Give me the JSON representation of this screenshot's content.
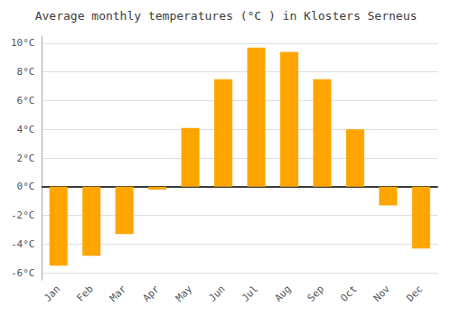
{
  "chart_data": {
    "type": "bar",
    "title": "Average monthly temperatures (°C ) in Klosters Serneus",
    "categories": [
      "Jan",
      "Feb",
      "Mar",
      "Apr",
      "May",
      "Jun",
      "Jul",
      "Aug",
      "Sep",
      "Oct",
      "Nov",
      "Dec"
    ],
    "values": [
      -5.5,
      -4.8,
      -3.3,
      -0.2,
      4.1,
      7.5,
      9.7,
      9.4,
      7.5,
      4.0,
      -1.3,
      -4.3
    ],
    "color": "#FFA500",
    "ylim": [
      -6.5,
      10.5
    ],
    "yticks": [
      {
        "value": -6,
        "label": "-6°C"
      },
      {
        "value": -4,
        "label": "-4°C"
      },
      {
        "value": -2,
        "label": "-2°C"
      },
      {
        "value": 0,
        "label": "0°C"
      },
      {
        "value": 2,
        "label": "2°C"
      },
      {
        "value": 4,
        "label": "4°C"
      },
      {
        "value": 6,
        "label": "6°C"
      },
      {
        "value": 8,
        "label": "8°C"
      },
      {
        "value": 10,
        "label": "10°C"
      }
    ],
    "grid": true
  }
}
